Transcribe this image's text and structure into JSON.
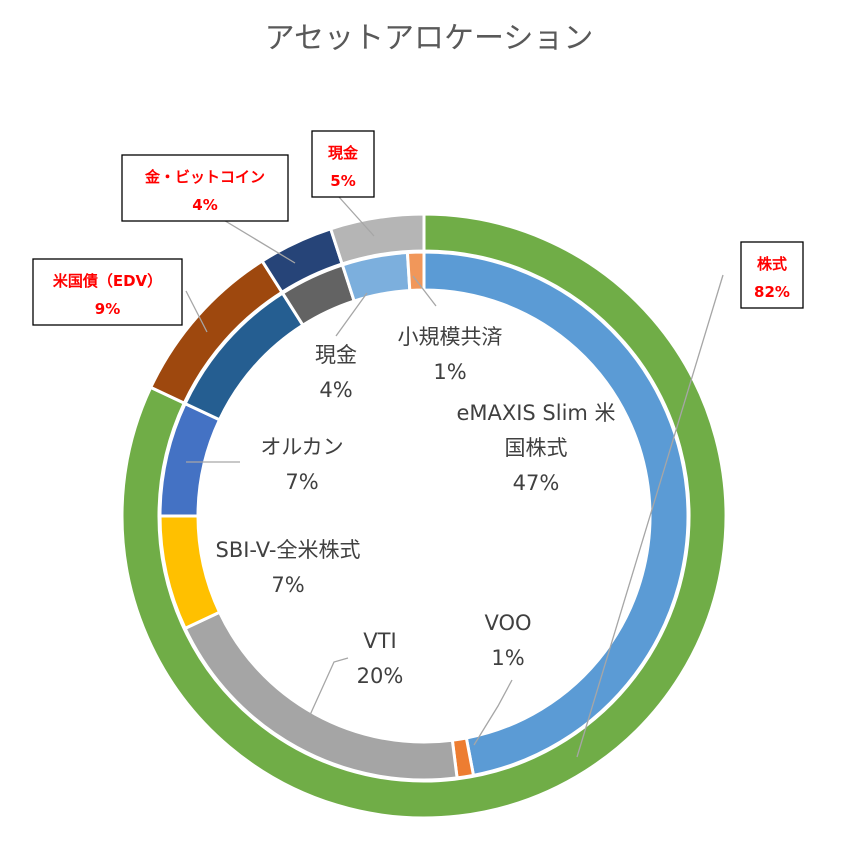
{
  "chart_data": {
    "type": "pie",
    "variant": "double-doughnut",
    "title": "アセットアロケーション",
    "inner_ring": [
      {
        "name": "eMAXIS Slim 米国株式",
        "label_lines": [
          "eMAXIS Slim 米",
          "国株式"
        ],
        "pct_label": "47%",
        "value": 47,
        "color": "#5b9bd5"
      },
      {
        "name": "VOO",
        "label_lines": [
          "VOO"
        ],
        "pct_label": "1%",
        "value": 1,
        "color": "#ed7d31"
      },
      {
        "name": "VTI",
        "label_lines": [
          "VTI"
        ],
        "pct_label": "20%",
        "value": 20,
        "color": "#a5a5a5"
      },
      {
        "name": "SBI-V-全米株式",
        "label_lines": [
          "SBI-V-全米株式"
        ],
        "pct_label": "7%",
        "value": 7,
        "color": "#ffc000"
      },
      {
        "name": "オルカン",
        "label_lines": [
          "オルカン"
        ],
        "pct_label": "7%",
        "value": 7,
        "color": "#4472c4"
      },
      {
        "name": "米国債（EDV）",
        "label_lines": [],
        "pct_label": "",
        "value": 9,
        "color": "#255e91"
      },
      {
        "name": "金・ビットコイン",
        "label_lines": [],
        "pct_label": "",
        "value": 4,
        "color": "#636363"
      },
      {
        "name": "現金",
        "label_lines": [
          "現金"
        ],
        "pct_label": "4%",
        "value": 4,
        "color": "#7cafdd"
      },
      {
        "name": "小規模共済",
        "label_lines": [
          "小規模共済"
        ],
        "pct_label": "1%",
        "value": 1,
        "color": "#f1975a"
      }
    ],
    "outer_ring": [
      {
        "name": "株式",
        "pct_label": "82%",
        "value": 82,
        "color": "#70ad47"
      },
      {
        "name": "米国債（EDV）",
        "pct_label": "9%",
        "value": 9,
        "color": "#9e480e"
      },
      {
        "name": "金・ビットコイン",
        "pct_label": "4%",
        "value": 4,
        "color": "#264478"
      },
      {
        "name": "現金",
        "pct_label": "5%",
        "value": 5,
        "color": "#b5b5b5"
      }
    ],
    "start_angle_deg": 0,
    "direction": "clockwise"
  }
}
